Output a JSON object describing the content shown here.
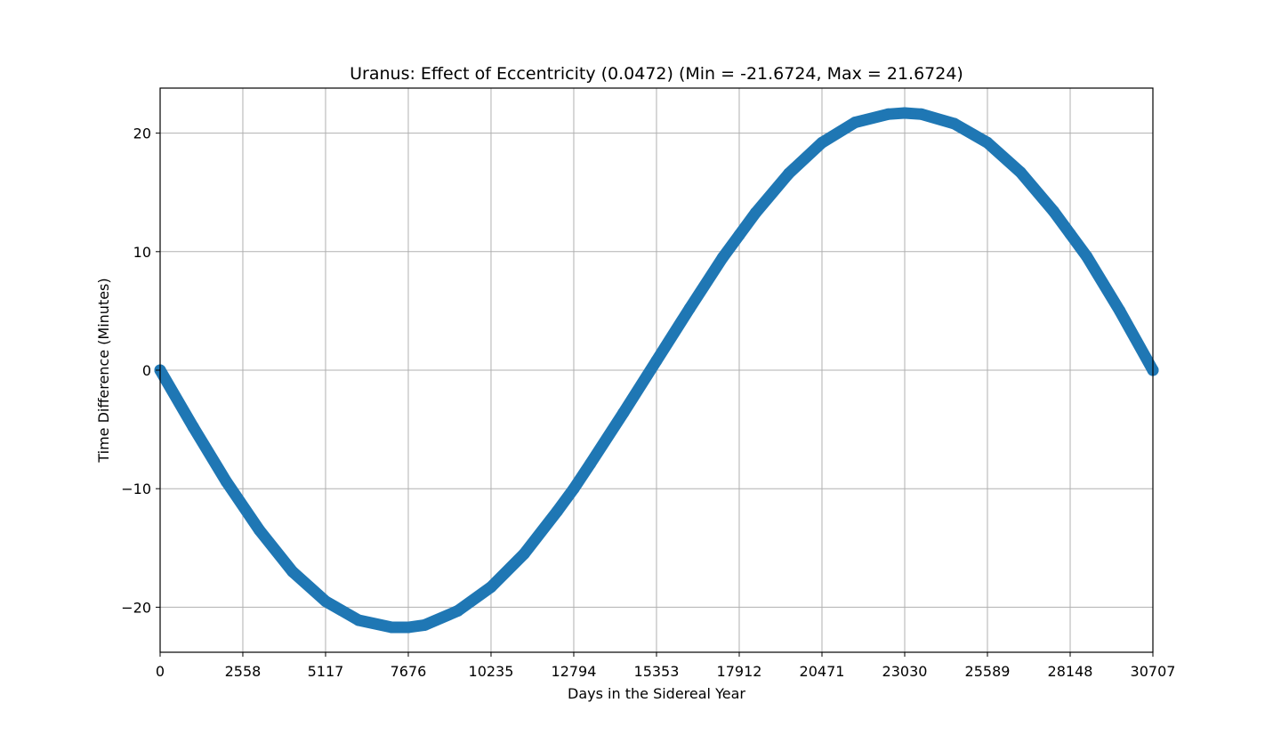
{
  "chart_data": {
    "type": "scatter",
    "title": "Uranus: Effect of Eccentricity (0.0472) (Min = -21.6724, Max = 21.6724)",
    "xlabel": "Days in the Sidereal Year",
    "ylabel": "Time Difference (Minutes)",
    "xlim": [
      0,
      30707
    ],
    "ylim": [
      -23.8,
      23.8
    ],
    "x_ticks": [
      0,
      2558,
      5117,
      7676,
      10235,
      12794,
      15353,
      17912,
      20471,
      23030,
      25589,
      28148,
      30707
    ],
    "x_tick_labels": [
      "0",
      "2558",
      "5117",
      "7676",
      "10235",
      "12794",
      "15353",
      "17912",
      "20471",
      "23030",
      "25589",
      "28148",
      "30707"
    ],
    "y_ticks": [
      -20,
      -10,
      0,
      10,
      20
    ],
    "y_tick_labels": [
      "−20",
      "−10",
      "0",
      "10",
      "20"
    ],
    "grid": true,
    "series": [
      {
        "color": "#1f77b4",
        "x": [
          0,
          1023,
          2046,
          3070,
          4093,
          5117,
          6140,
          7164,
          7676,
          8187,
          9211,
          10235,
          11258,
          12282,
          12794,
          13305,
          14329,
          15353,
          16376,
          17400,
          17912,
          18423,
          19447,
          20471,
          21494,
          22518,
          23030,
          23541,
          24565,
          25589,
          26612,
          27636,
          28148,
          28659,
          29683,
          30707
        ],
        "y": [
          0.0,
          -4.8,
          -9.4,
          -13.5,
          -17.0,
          -19.5,
          -21.1,
          -21.7,
          -21.7,
          -21.5,
          -20.3,
          -18.3,
          -15.5,
          -11.9,
          -10.0,
          -7.9,
          -3.6,
          0.8,
          5.2,
          9.5,
          11.4,
          13.3,
          16.6,
          19.2,
          20.9,
          21.6,
          21.7,
          21.6,
          20.8,
          19.2,
          16.7,
          13.4,
          11.5,
          9.6,
          5.0,
          0.0
        ]
      }
    ]
  }
}
